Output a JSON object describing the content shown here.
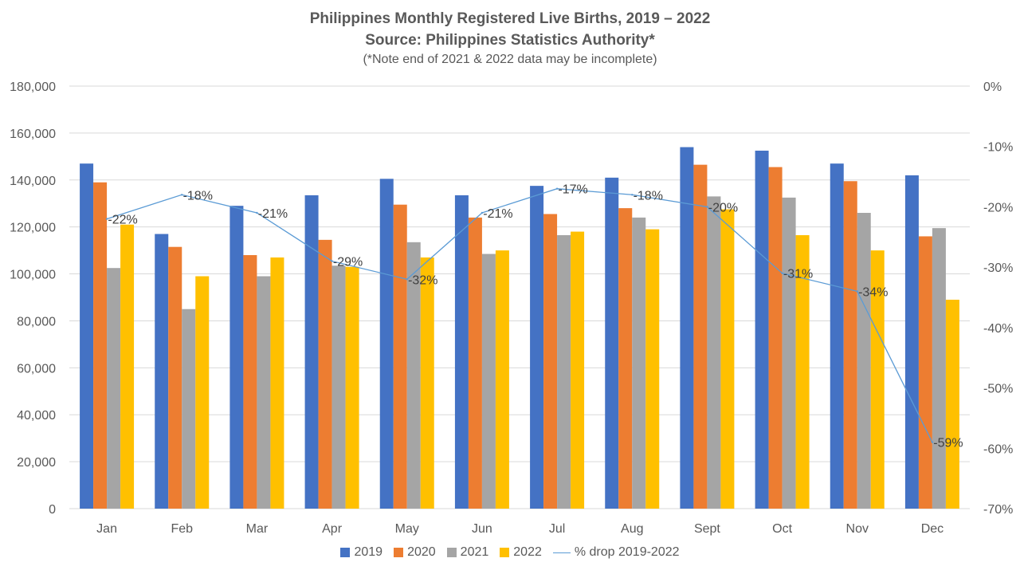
{
  "title": {
    "line1": "Philippines Monthly Registered Live Births, 2019 – 2022",
    "line2": "Source: Philippines Statistics Authority*",
    "note": "(*Note end of 2021 & 2022 data may be incomplete)"
  },
  "colors": {
    "s2019": "#4472c4",
    "s2020": "#ed7d31",
    "s2021": "#a5a5a5",
    "s2022": "#ffc000",
    "line": "#5b9bd5",
    "grid": "#d9d9d9",
    "text": "#595959"
  },
  "chart_data": {
    "type": "bar",
    "title": "Philippines Monthly Registered Live Births, 2019 – 2022",
    "subtitle": "Source: Philippines Statistics Authority*",
    "note": "(*Note end of 2021 & 2022 data may be incomplete)",
    "categories": [
      "Jan",
      "Feb",
      "Mar",
      "Apr",
      "May",
      "Jun",
      "Jul",
      "Aug",
      "Sept",
      "Oct",
      "Nov",
      "Dec"
    ],
    "y_left": {
      "ylim": [
        0,
        180000
      ],
      "ticks": [
        0,
        20000,
        40000,
        60000,
        80000,
        100000,
        120000,
        140000,
        160000,
        180000
      ],
      "tick_labels": [
        "0",
        "20,000",
        "40,000",
        "60,000",
        "80,000",
        "100,000",
        "120,000",
        "140,000",
        "160,000",
        "180,000"
      ]
    },
    "y_right": {
      "ylim": [
        -70,
        0
      ],
      "ticks": [
        0,
        -10,
        -20,
        -30,
        -40,
        -50,
        -60,
        -70
      ],
      "tick_labels": [
        "0%",
        "-10%",
        "-20%",
        "-30%",
        "-40%",
        "-50%",
        "-60%",
        "-70%"
      ]
    },
    "grid": true,
    "legend_position": "bottom",
    "series": [
      {
        "name": "2019",
        "type": "bar",
        "axis": "left",
        "values": [
          147000,
          117000,
          129000,
          133500,
          140500,
          133500,
          137500,
          141000,
          154000,
          152500,
          147000,
          142000
        ]
      },
      {
        "name": "2020",
        "type": "bar",
        "axis": "left",
        "values": [
          139000,
          111500,
          108000,
          114500,
          129500,
          124000,
          125500,
          128000,
          146500,
          145500,
          139500,
          116000
        ]
      },
      {
        "name": "2021",
        "type": "bar",
        "axis": "left",
        "values": [
          102500,
          85000,
          99000,
          103500,
          113500,
          108500,
          116500,
          124000,
          133000,
          132500,
          126000,
          119500
        ]
      },
      {
        "name": "2022",
        "type": "bar",
        "axis": "left",
        "values": [
          121000,
          99000,
          107000,
          103000,
          107000,
          110000,
          118000,
          119000,
          127500,
          116500,
          110000,
          89000
        ]
      },
      {
        "name": "% drop 2019-2022",
        "type": "line",
        "axis": "right",
        "values": [
          -22,
          -18,
          -21,
          -29,
          -32,
          -21,
          -17,
          -18,
          -20,
          -31,
          -34,
          -59
        ]
      }
    ],
    "data_labels": [
      "-22%",
      "-18%",
      "-21%",
      "-29%",
      "-32%",
      "-21%",
      "-17%",
      "-18%",
      "-20%",
      "-31%",
      "-34%",
      "-59%"
    ]
  },
  "legend": {
    "items": [
      "2019",
      "2020",
      "2021",
      "2022",
      "% drop 2019-2022"
    ]
  }
}
